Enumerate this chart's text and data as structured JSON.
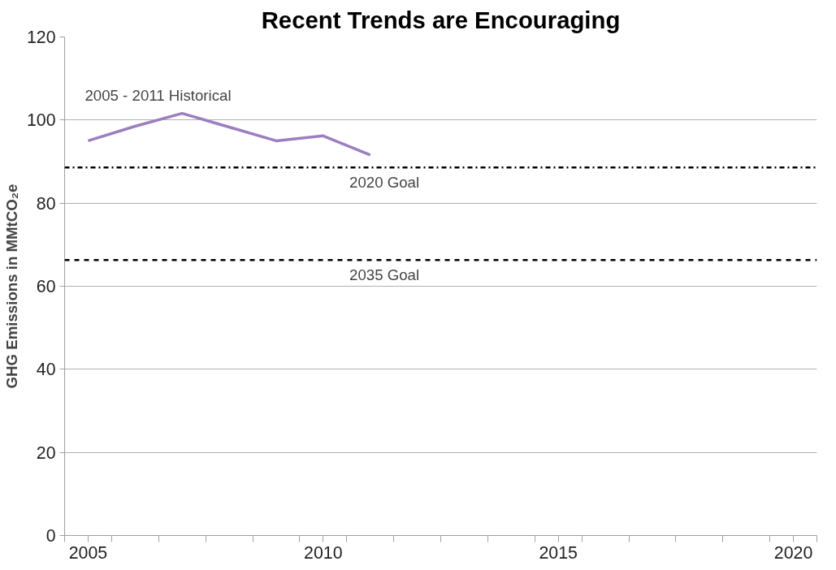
{
  "chart_data": {
    "type": "line",
    "title": "Recent Trends are Encouraging",
    "ylabel": "GHG Emissions in MMtCO₂e",
    "x": [
      2005,
      2006,
      2007,
      2008,
      2009,
      2010,
      2011
    ],
    "series": [
      {
        "name": "2005 - 2011 Historical",
        "color": "#9b7fc0",
        "values": [
          95,
          98.5,
          101.6,
          98.3,
          95,
          96.2,
          91.6
        ]
      }
    ],
    "xlim": [
      2004.5,
      2020.5
    ],
    "xticks": [
      {
        "value": 2005,
        "label": "2005"
      },
      {
        "value": 2010,
        "label": "2010"
      },
      {
        "value": 2015,
        "label": "2015"
      },
      {
        "value": 2020,
        "label": "2020"
      },
      {
        "value": 2004.5,
        "label": null
      },
      {
        "value": 2005.5,
        "label": null
      },
      {
        "value": 2006.5,
        "label": null
      },
      {
        "value": 2007.5,
        "label": null
      },
      {
        "value": 2008.5,
        "label": null
      },
      {
        "value": 2009.5,
        "label": null
      },
      {
        "value": 2010.5,
        "label": null
      },
      {
        "value": 2011.5,
        "label": null
      },
      {
        "value": 2012.5,
        "label": null
      },
      {
        "value": 2013.5,
        "label": null
      },
      {
        "value": 2014.5,
        "label": null
      },
      {
        "value": 2015.5,
        "label": null
      },
      {
        "value": 2016.5,
        "label": null
      },
      {
        "value": 2017.5,
        "label": null
      },
      {
        "value": 2018.5,
        "label": null
      },
      {
        "value": 2019.5,
        "label": null
      },
      {
        "value": 2020.5,
        "label": null
      }
    ],
    "ylim": [
      0,
      120
    ],
    "yticks": [
      0,
      20,
      40,
      60,
      80,
      100,
      120
    ],
    "grid": "y",
    "ref_lines": [
      {
        "axis": "y",
        "value": 88.6,
        "label": "2020 Goal",
        "color": "#000000",
        "line_style": "dashdot"
      },
      {
        "axis": "y",
        "value": 66.3,
        "label": "2035 Goal",
        "color": "#000000",
        "line_style": "dashed"
      }
    ]
  }
}
